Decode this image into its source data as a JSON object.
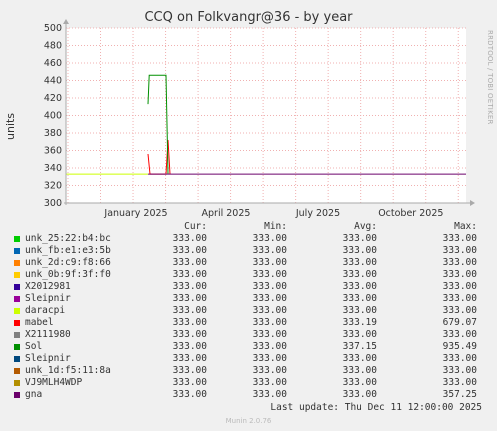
{
  "title": "CCQ on Folkvangr@36 - by year",
  "side_label": "RRDTOOL / TOBI OETIKER",
  "footer": "Munin 2.0.76",
  "last_update": "Last update: Thu Dec 11 12:00:00 2025",
  "legend_headers": {
    "cur": "Cur:",
    "min": "Min:",
    "avg": "Avg:",
    "max": "Max:"
  },
  "chart_data": {
    "type": "line",
    "title": "CCQ on Folkvangr@36 - by year",
    "ylabel": "units",
    "ylim": [
      300,
      500
    ],
    "yticks": [
      300,
      320,
      340,
      360,
      380,
      400,
      420,
      440,
      460,
      480,
      500
    ],
    "xticks": [
      "January 2025",
      "April 2025",
      "July 2025",
      "October 2025"
    ],
    "grid": true,
    "series": [
      {
        "name": "unk_25:22:b4:bc",
        "color": "#00cc00",
        "cur": "333.00",
        "min": "333.00",
        "avg": "333.00",
        "max": "333.00",
        "points": []
      },
      {
        "name": "unk_fb:e1:e3:5b",
        "color": "#0066b3",
        "cur": "333.00",
        "min": "333.00",
        "avg": "333.00",
        "max": "333.00",
        "points": []
      },
      {
        "name": "unk_2d:c9:f8:66",
        "color": "#ff8000",
        "cur": "333.00",
        "min": "333.00",
        "avg": "333.00",
        "max": "333.00",
        "points": []
      },
      {
        "name": "unk_0b:9f:3f:f0",
        "color": "#ffcc00",
        "cur": "333.00",
        "min": "333.00",
        "avg": "333.00",
        "max": "333.00",
        "points": []
      },
      {
        "name": "X2012981",
        "color": "#330099",
        "cur": "333.00",
        "min": "333.00",
        "avg": "333.00",
        "max": "333.00",
        "points": []
      },
      {
        "name": "Sleipnir",
        "color": "#990099",
        "cur": "333.00",
        "min": "333.00",
        "avg": "333.00",
        "max": "333.00",
        "points": []
      },
      {
        "name": "daracpi",
        "color": "#ccff00",
        "cur": "333.00",
        "min": "333.00",
        "avg": "333.00",
        "max": "333.00",
        "points": [
          [
            0,
            333
          ],
          [
            0.205,
            333
          ]
        ]
      },
      {
        "name": "mabel",
        "color": "#ff0000",
        "cur": "333.00",
        "min": "333.00",
        "avg": "333.19",
        "max": "679.07",
        "points": [
          [
            0.205,
            356
          ],
          [
            0.21,
            333
          ],
          [
            0.25,
            333
          ],
          [
            0.255,
            372
          ],
          [
            0.26,
            333
          ]
        ]
      },
      {
        "name": "X2111980",
        "color": "#808080",
        "cur": "333.00",
        "min": "333.00",
        "avg": "333.00",
        "max": "333.00",
        "points": []
      },
      {
        "name": "Sol",
        "color": "#008f00",
        "cur": "333.00",
        "min": "333.00",
        "avg": "337.15",
        "max": "935.49",
        "points": [
          [
            0.205,
            413
          ],
          [
            0.208,
            446
          ],
          [
            0.25,
            446
          ],
          [
            0.255,
            333
          ]
        ]
      },
      {
        "name": "Sleipnir",
        "color": "#00487d",
        "cur": "333.00",
        "min": "333.00",
        "avg": "333.00",
        "max": "333.00",
        "points": []
      },
      {
        "name": "unk_1d:f5:11:8a",
        "color": "#b35a00",
        "cur": "333.00",
        "min": "333.00",
        "avg": "333.00",
        "max": "333.00",
        "points": []
      },
      {
        "name": "VJ9MLH4WDP",
        "color": "#b38f00",
        "cur": "333.00",
        "min": "333.00",
        "avg": "333.00",
        "max": "333.00",
        "points": []
      },
      {
        "name": "gna",
        "color": "#6b006b",
        "cur": "333.00",
        "min": "333.00",
        "avg": "333.00",
        "max": "357.25",
        "points": [
          [
            0.205,
            333
          ],
          [
            1,
            333
          ]
        ]
      }
    ]
  }
}
